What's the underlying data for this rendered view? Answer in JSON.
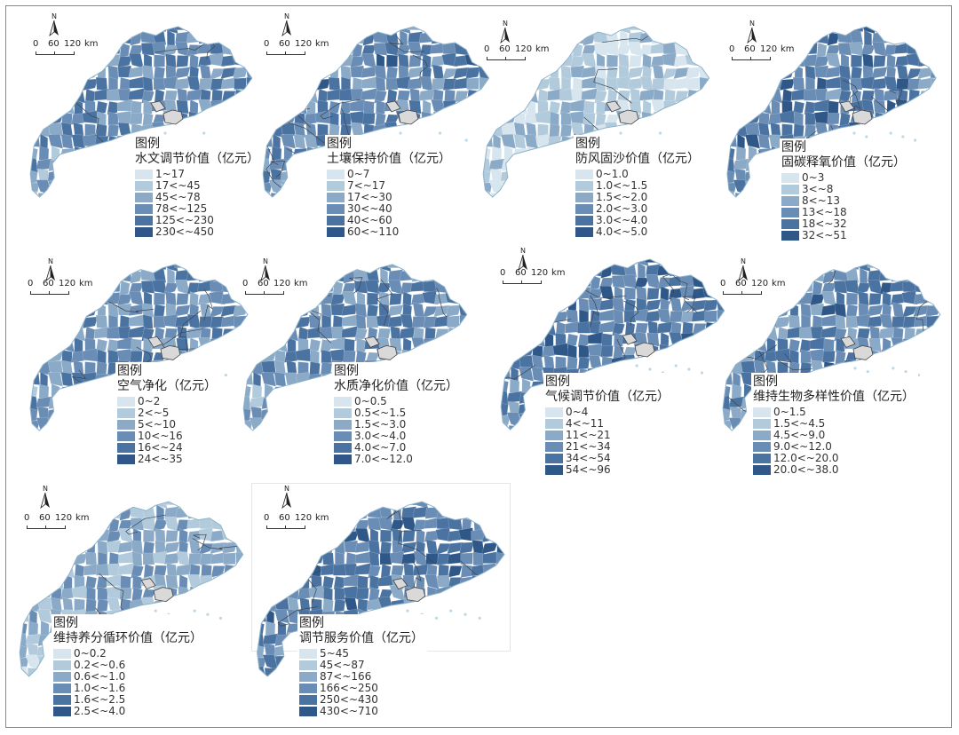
{
  "legend_title": "图例",
  "scalebar": {
    "ticks": [
      "0",
      "60",
      "120"
    ],
    "unit": "km"
  },
  "north_label": "N",
  "colors": {
    "classes": [
      "#d6e5ee",
      "#b2cbdc",
      "#8aaac7",
      "#6a8db5",
      "#4b73a1",
      "#2f5888"
    ],
    "district_border": "#3c4652",
    "excluded_area": "#d9d9d9",
    "islands": "#bcd9ea"
  },
  "panels": [
    {
      "id": "water-regulation",
      "title": "水文调节价值（亿元）",
      "classes": [
        "1~17",
        "17<~45",
        "45<~78",
        "78<~125",
        "125<~230",
        "230<~450"
      ],
      "tone": 0.62
    },
    {
      "id": "soil-conservation",
      "title": "土壤保持价值（亿元）",
      "classes": [
        "0~7",
        "7<~17",
        "17<~30",
        "30<~40",
        "40<~60",
        "60<~110"
      ],
      "tone": 0.66
    },
    {
      "id": "windbreak-sand-fixation",
      "title": "防风固沙价值（亿元）",
      "classes": [
        "0~1.0",
        "1.0<~1.5",
        "1.5<~2.0",
        "2.0<~3.0",
        "3.0<~4.0",
        "4.0<~5.0"
      ],
      "tone": 0.22
    },
    {
      "id": "carbon-oxygen",
      "title": "固碳释氧价值（亿元）",
      "classes": [
        "0~3",
        "3<~8",
        "8<~13",
        "13<~18",
        "18<~32",
        "32<~51"
      ],
      "tone": 0.72
    },
    {
      "id": "air-purification",
      "title": "空气净化（亿元）",
      "classes": [
        "0~2",
        "2<~5",
        "5<~10",
        "10<~16",
        "16<~24",
        "24<~35"
      ],
      "tone": 0.64
    },
    {
      "id": "water-purification",
      "title": "水质净化价值（亿元）",
      "classes": [
        "0~0.5",
        "0.5<~1.5",
        "1.5<~3.0",
        "3.0<~4.0",
        "4.0<~7.0",
        "7.0<~12.0"
      ],
      "tone": 0.6
    },
    {
      "id": "climate-regulation",
      "title": "气候调节价值（亿元）",
      "classes": [
        "0~4",
        "4<~11",
        "11<~21",
        "21<~34",
        "34<~54",
        "54<~96"
      ],
      "tone": 0.74
    },
    {
      "id": "biodiversity",
      "title": "维持生物多样性价值（亿元）",
      "classes": [
        "0~1.5",
        "1.5<~4.5",
        "4.5<~9.0",
        "9.0<~12.0",
        "12.0<~20.0",
        "20.0<~38.0"
      ],
      "tone": 0.66
    },
    {
      "id": "nutrient-cycling",
      "title": "维持养分循环价值（亿元）",
      "classes": [
        "0~0.2",
        "0.2<~0.6",
        "0.6<~1.0",
        "1.0<~1.6",
        "1.6<~2.5",
        "2.5<~4.0"
      ],
      "tone": 0.4
    },
    {
      "id": "regulating-services",
      "title": "调节服务价值（亿元）",
      "classes": [
        "5~45",
        "45<~87",
        "87<~166",
        "166<~250",
        "250<~430",
        "430<~710"
      ],
      "tone": 0.7
    }
  ]
}
